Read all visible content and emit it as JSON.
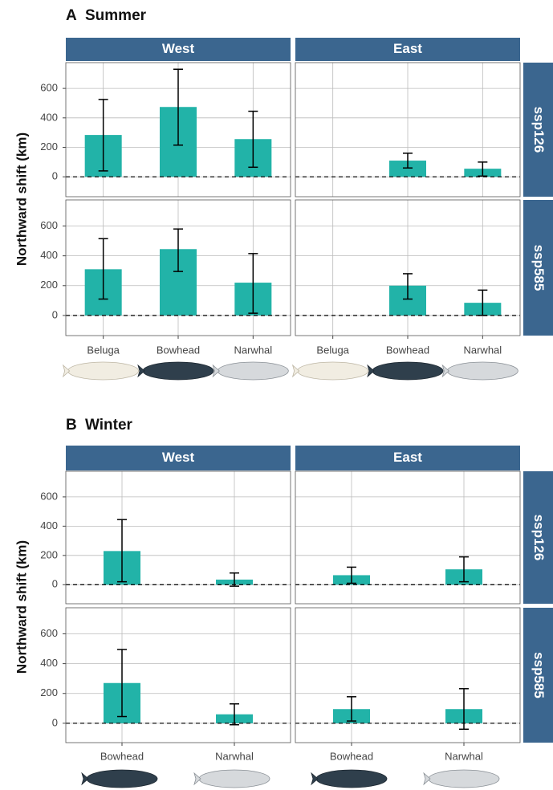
{
  "chart_data": [
    {
      "type": "bar",
      "panel_label": "A",
      "title": "Summer",
      "ylabel": "Northward shift (km)",
      "color": "#22b3a8",
      "strip_color": "#3b668f",
      "facet_columns": [
        "West",
        "East"
      ],
      "facet_rows": [
        "ssp126",
        "ssp585"
      ],
      "categories": [
        "Beluga",
        "Bowhead",
        "Narwhal"
      ],
      "ylim": [
        -135,
        775
      ],
      "yticks": [
        0,
        200,
        400,
        600
      ],
      "grid": true,
      "panels": [
        [
          {
            "values": [
              284,
              474,
              256
            ],
            "lower": [
              40,
              215,
              65
            ],
            "upper": [
              525,
              730,
              445
            ]
          },
          {
            "values": [
              null,
              110,
              55
            ],
            "lower": [
              null,
              60,
              5
            ],
            "upper": [
              null,
              160,
              100
            ]
          }
        ],
        [
          {
            "values": [
              310,
              445,
              220
            ],
            "lower": [
              110,
              295,
              15
            ],
            "upper": [
              515,
              580,
              415
            ]
          },
          {
            "values": [
              null,
              200,
              85
            ],
            "lower": [
              null,
              110,
              0
            ],
            "upper": [
              null,
              280,
              170
            ]
          }
        ]
      ]
    },
    {
      "type": "bar",
      "panel_label": "B",
      "title": "Winter",
      "ylabel": "Northward shift (km)",
      "color": "#22b3a8",
      "strip_color": "#3b668f",
      "facet_columns": [
        "West",
        "East"
      ],
      "facet_rows": [
        "ssp126",
        "ssp585"
      ],
      "categories": [
        "Bowhead",
        "Narwhal"
      ],
      "ylim": [
        -130,
        775
      ],
      "yticks": [
        0,
        200,
        400,
        600
      ],
      "grid": true,
      "panels": [
        [
          {
            "values": [
              230,
              35
            ],
            "lower": [
              20,
              -10
            ],
            "upper": [
              445,
              80
            ]
          },
          {
            "values": [
              65,
              105
            ],
            "lower": [
              10,
              20
            ],
            "upper": [
              120,
              190
            ]
          }
        ],
        [
          {
            "values": [
              270,
              60
            ],
            "lower": [
              45,
              -10
            ],
            "upper": [
              495,
              130
            ]
          },
          {
            "values": [
              95,
              95
            ],
            "lower": [
              15,
              -40
            ],
            "upper": [
              178,
              232
            ]
          }
        ]
      ]
    }
  ]
}
